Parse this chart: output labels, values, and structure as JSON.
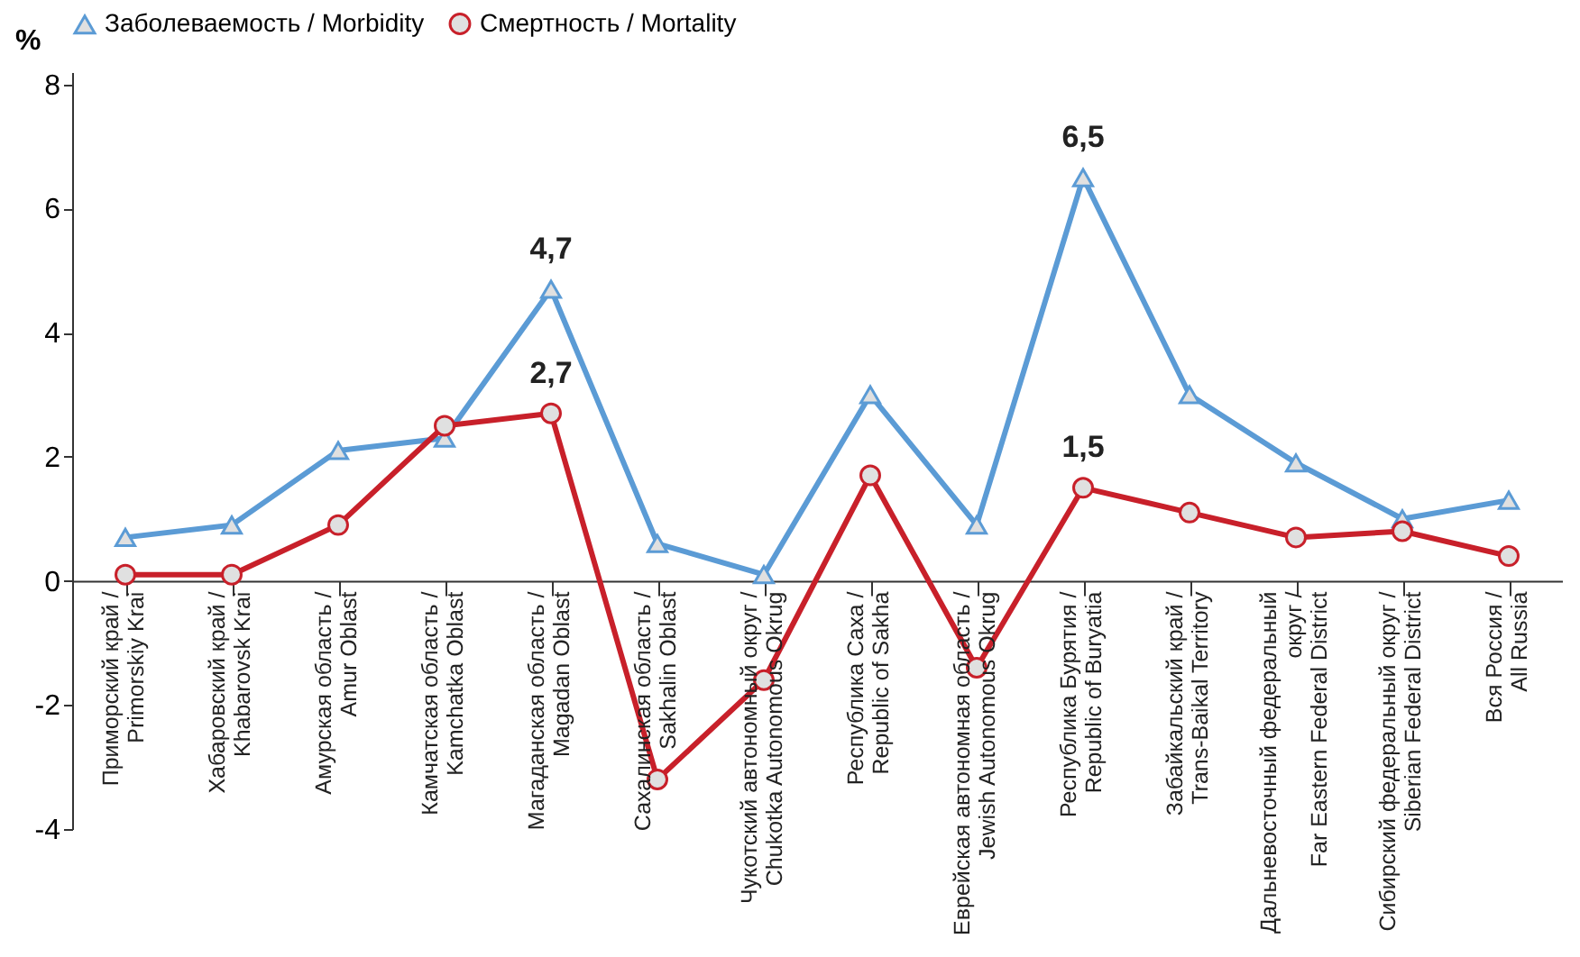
{
  "chart_data": {
    "type": "line",
    "ylabel": "%",
    "categories": [
      "Приморский край / Primorskiy Krai",
      "Хабаровский край / Khabarovsk Krai",
      "Амурская область / Amur Oblast",
      "Камчатская область / Kamchatka Oblast",
      "Магаданская область / Magadan Oblast",
      "Сахалинская область / Sakhalin Oblast",
      "Чукотский автономный округ / Chukotka Autonomous Okrug",
      "Республика Саха / Republic of Sakha",
      "Еврейская автономная область / Jewish Autonomous Okrug",
      "Республика Бурятия / Republic of Buryatia",
      "Забайкальский край / Trans-Baikal Territory",
      "Дальневосточный федеральный округ / Far Eastern Federal District",
      "Сибирский федеральный округ / Siberian Federal District",
      "Вся Россия / All Russia"
    ],
    "series": [
      {
        "name": "Заболеваемость / Morbidity",
        "color": "#5b9bd5",
        "marker": "triangle",
        "values": [
          0.7,
          0.9,
          2.1,
          2.3,
          4.7,
          0.6,
          0.1,
          3.0,
          0.9,
          6.5,
          3.0,
          1.9,
          1.0,
          1.3
        ],
        "value_labels": [
          null,
          null,
          null,
          null,
          "4,7",
          null,
          null,
          null,
          null,
          "6,5",
          null,
          null,
          null,
          null
        ]
      },
      {
        "name": "Смертность / Mortality",
        "color": "#c8202a",
        "marker": "circle",
        "values": [
          0.1,
          0.1,
          0.9,
          2.5,
          2.7,
          -3.2,
          -1.6,
          1.7,
          -1.4,
          1.5,
          1.1,
          0.7,
          0.8,
          0.4
        ],
        "value_labels": [
          null,
          null,
          null,
          null,
          "2,7",
          null,
          null,
          null,
          null,
          "1,5",
          null,
          null,
          null,
          null
        ]
      }
    ],
    "ylim": [
      -4,
      8.2
    ],
    "yticks": [
      -4,
      -2,
      0,
      2,
      4,
      6,
      8
    ],
    "grid": false,
    "legend": "top"
  }
}
